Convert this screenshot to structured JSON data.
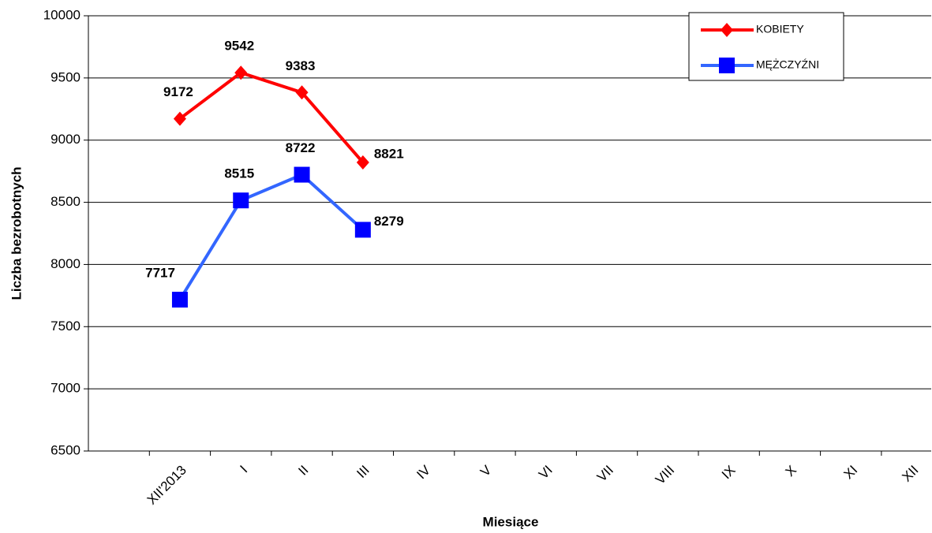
{
  "chart_data": {
    "type": "line",
    "categories": [
      null,
      "XII'2013",
      "I",
      "II",
      "III",
      "IV",
      "V",
      "VI",
      "VII",
      "VIII",
      "IX",
      "X",
      "XI",
      "XII"
    ],
    "series": [
      {
        "name": "KOBIETY",
        "color": "#ff0000",
        "marker": "diamond",
        "values": [
          null,
          9172,
          9542,
          9383,
          8821,
          null,
          null,
          null,
          null,
          null,
          null,
          null,
          null,
          null
        ]
      },
      {
        "name": "MĘŻCZYŹNI",
        "color": "#3366ff",
        "marker": "square",
        "values": [
          null,
          7717,
          8515,
          8722,
          8279,
          null,
          null,
          null,
          null,
          null,
          null,
          null,
          null,
          null
        ]
      }
    ],
    "ylim": [
      6500,
      10000
    ],
    "yticks": [
      6500,
      7000,
      7500,
      8000,
      8500,
      9000,
      9500,
      10000
    ],
    "ylabel": "Liczba bezrobotnych",
    "xlabel": "Miesiące",
    "grid": true,
    "legend": "top-right"
  }
}
